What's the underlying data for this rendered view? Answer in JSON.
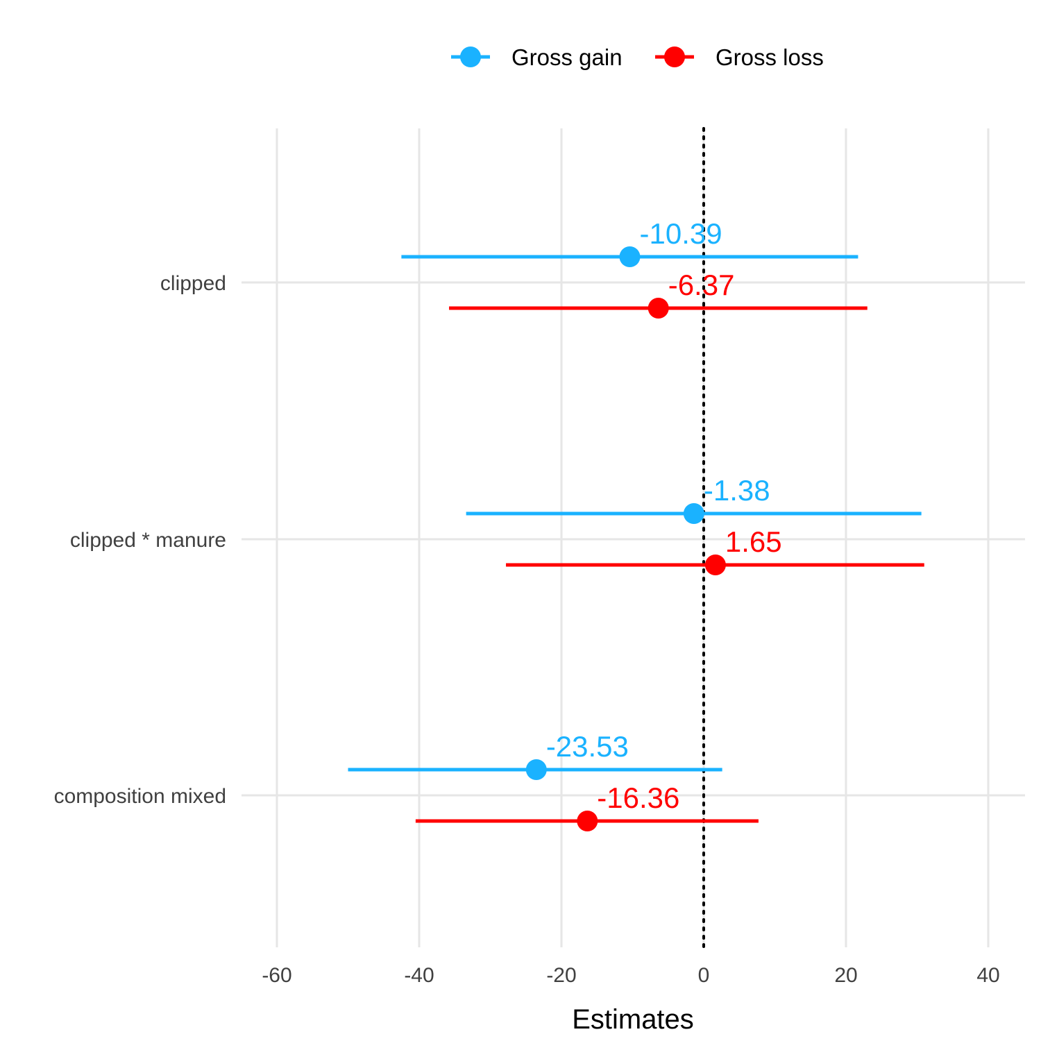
{
  "chart_data": {
    "type": "forest",
    "xlabel": "Estimates",
    "xlim": [
      -67,
      45
    ],
    "x_ticks": [
      -60,
      -40,
      -20,
      0,
      20,
      40
    ],
    "x_tick_labels": [
      "-60",
      "-40",
      "-20",
      "0",
      "20",
      "40"
    ],
    "reference_line": 0,
    "categories": [
      "clipped",
      "clipped * manure",
      "composition mixed"
    ],
    "legend_position": "top",
    "grid": true,
    "series": [
      {
        "name": "Gross gain",
        "color": "#1AB2FF",
        "estimates": [
          -10.39,
          -1.38,
          -23.53
        ],
        "labels": [
          "-10.39",
          "-1.38",
          "-23.53"
        ],
        "ci_low": [
          -42.5,
          -33.4,
          -50.0
        ],
        "ci_high": [
          21.7,
          30.6,
          2.6
        ]
      },
      {
        "name": "Gross loss",
        "color": "#FF0000",
        "estimates": [
          -6.37,
          1.65,
          -16.36
        ],
        "labels": [
          "-6.37",
          "1.65",
          "-16.36"
        ],
        "ci_low": [
          -35.8,
          -27.8,
          -40.5
        ],
        "ci_high": [
          23.0,
          31.0,
          7.7
        ]
      }
    ]
  }
}
